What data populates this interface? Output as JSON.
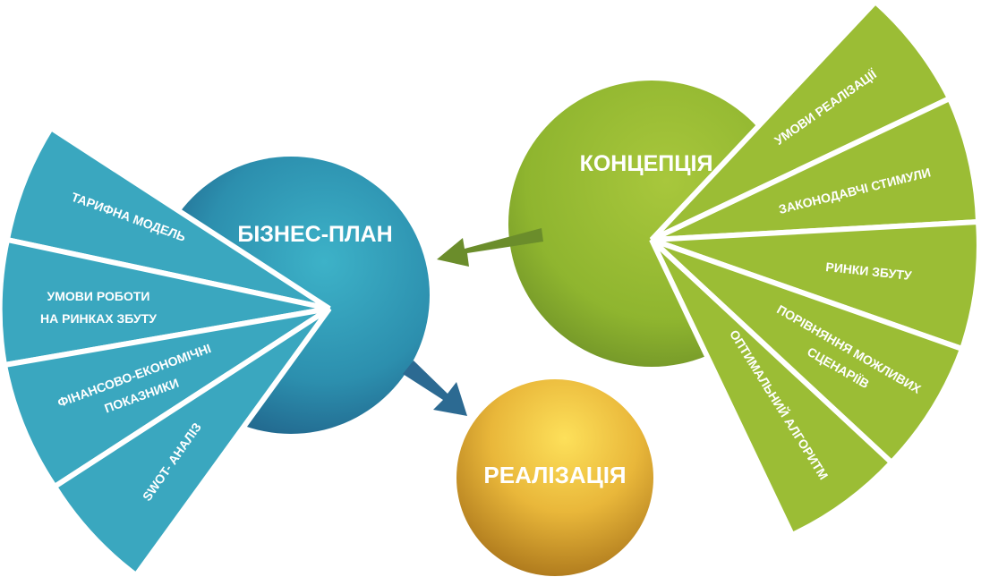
{
  "business_plan": {
    "title": "БІЗНЕС-ПЛАН",
    "segments": [
      {
        "label": "ТАРИФНА МОДЕЛЬ"
      },
      {
        "label_line1": "УМОВИ РОБОТИ",
        "label_line2": "НА РИНКАХ ЗБУТУ"
      },
      {
        "label_line1": "ФІНАНСОВО-ЕКОНОМІЧНІ",
        "label_line2": "ПОКАЗНИКИ"
      },
      {
        "label": "SWOT- АНАЛІЗ"
      }
    ],
    "color": "#39a6be"
  },
  "concept": {
    "title": "КОНЦЕПЦІЯ",
    "segments": [
      {
        "label": "УМОВИ РЕАЛІЗАЦІЇ"
      },
      {
        "label": "ЗАКОНОДАВЧІ СТИМУЛИ"
      },
      {
        "label": "РИНКИ ЗБУТУ"
      },
      {
        "label_line1": "ПОРІВНЯННЯ МОЖЛИВИХ",
        "label_line2": "СЦЕНАРІЇВ"
      },
      {
        "label": "ОПТИМАЛЬНИЙ АЛГОРИТМ"
      }
    ],
    "color": "#9dbd34"
  },
  "realization": {
    "title": "РЕАЛІЗАЦІЯ",
    "color": "#e2a82e"
  }
}
